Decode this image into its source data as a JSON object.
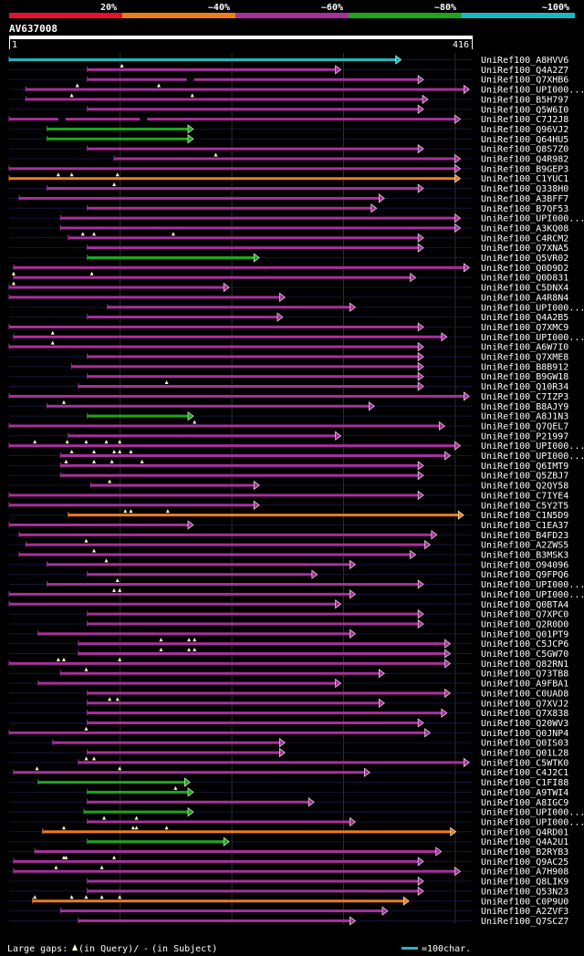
{
  "chart_data": {
    "type": "alignment-overview",
    "query_id": "AV637008",
    "query_length": 416,
    "axis": {
      "start_label": "1",
      "end_label": "416"
    },
    "identity_legend": [
      {
        "label": "20%",
        "color": "#e8102c"
      },
      {
        "label": "~40%",
        "color": "#ee7c1b"
      },
      {
        "label": "~60%",
        "color": "#a8309c"
      },
      {
        "label": "~80%",
        "color": "#1ca61c"
      },
      {
        "label": "~100%",
        "color": "#1cb8c0"
      }
    ],
    "hits": [
      {
        "name": "UniRef100_A8HVV6",
        "start": 1,
        "end": 352,
        "color": "#1cb8c0",
        "gaps_query": [],
        "gaps_subject": []
      },
      {
        "name": "UniRef100_Q4A2Z7",
        "start": 71,
        "end": 298,
        "color": "#a8309c",
        "gaps_query": [
          102
        ],
        "gaps_subject": []
      },
      {
        "name": "UniRef100_Q7XHB6",
        "start": 71,
        "end": 372,
        "color": "#a8309c",
        "gaps_query": [],
        "gaps_subject": [
          160
        ]
      },
      {
        "name": "UniRef100_UPI000...",
        "start": 16,
        "end": 413,
        "color": "#a8309c",
        "gaps_query": [
          62,
          135
        ],
        "gaps_subject": []
      },
      {
        "name": "UniRef100_B5H797",
        "start": 16,
        "end": 376,
        "color": "#a8309c",
        "gaps_query": [
          57,
          165
        ],
        "gaps_subject": []
      },
      {
        "name": "UniRef100_Q5W6I0",
        "start": 71,
        "end": 372,
        "color": "#a8309c",
        "gaps_query": [],
        "gaps_subject": []
      },
      {
        "name": "UniRef100_C7J2J8",
        "start": 1,
        "end": 405,
        "color": "#a8309c",
        "gaps_query": [],
        "gaps_subject": [
          45,
          118
        ]
      },
      {
        "name": "UniRef100_Q96VJ2",
        "start": 35,
        "end": 166,
        "color": "#1ca61c",
        "gaps_query": [],
        "gaps_subject": []
      },
      {
        "name": "UniRef100_Q64HU5",
        "start": 35,
        "end": 166,
        "color": "#1ca61c",
        "gaps_query": [],
        "gaps_subject": []
      },
      {
        "name": "UniRef100_Q8S7Z0",
        "start": 71,
        "end": 372,
        "color": "#a8309c",
        "gaps_query": [],
        "gaps_subject": []
      },
      {
        "name": "UniRef100_Q4R982",
        "start": 95,
        "end": 405,
        "color": "#a8309c",
        "gaps_query": [
          186
        ],
        "gaps_subject": []
      },
      {
        "name": "UniRef100_B9GEP3",
        "start": 1,
        "end": 405,
        "color": "#a8309c",
        "gaps_query": [],
        "gaps_subject": []
      },
      {
        "name": "UniRef100_C1YUC1",
        "start": 1,
        "end": 405,
        "color": "#ee7c1b",
        "gaps_query": [
          45,
          57,
          98
        ],
        "gaps_subject": []
      },
      {
        "name": "UniRef100_Q338H0",
        "start": 35,
        "end": 372,
        "color": "#a8309c",
        "gaps_query": [
          95
        ],
        "gaps_subject": []
      },
      {
        "name": "UniRef100_A3BFF7",
        "start": 10,
        "end": 337,
        "color": "#a8309c",
        "gaps_query": [],
        "gaps_subject": []
      },
      {
        "name": "UniRef100_B7QF53",
        "start": 71,
        "end": 330,
        "color": "#a8309c",
        "gaps_query": [],
        "gaps_subject": []
      },
      {
        "name": "UniRef100_UPI000...",
        "start": 47,
        "end": 405,
        "color": "#a8309c",
        "gaps_query": [],
        "gaps_subject": []
      },
      {
        "name": "UniRef100_A3KQ08",
        "start": 47,
        "end": 405,
        "color": "#a8309c",
        "gaps_query": [],
        "gaps_subject": []
      },
      {
        "name": "UniRef100_C4RCM2",
        "start": 54,
        "end": 372,
        "color": "#a8309c",
        "gaps_query": [
          67,
          77,
          148
        ],
        "gaps_subject": []
      },
      {
        "name": "UniRef100_Q7XNA5",
        "start": 71,
        "end": 372,
        "color": "#a8309c",
        "gaps_query": [],
        "gaps_subject": []
      },
      {
        "name": "UniRef100_Q5VR02",
        "start": 71,
        "end": 225,
        "color": "#1ca61c",
        "gaps_query": [],
        "gaps_subject": []
      },
      {
        "name": "UniRef100_Q0D9D2",
        "start": 5,
        "end": 413,
        "color": "#a8309c",
        "gaps_query": [],
        "gaps_subject": []
      },
      {
        "name": "UniRef100_Q0D831",
        "start": 5,
        "end": 365,
        "color": "#a8309c",
        "gaps_query": [
          5,
          75
        ],
        "gaps_subject": []
      },
      {
        "name": "UniRef100_C5DNX4",
        "start": 1,
        "end": 198,
        "color": "#a8309c",
        "gaps_query": [
          5
        ],
        "gaps_subject": []
      },
      {
        "name": "UniRef100_A4R8N4",
        "start": 1,
        "end": 248,
        "color": "#a8309c",
        "gaps_query": [],
        "gaps_subject": []
      },
      {
        "name": "UniRef100_UPI000...",
        "start": 89,
        "end": 311,
        "color": "#a8309c",
        "gaps_query": [],
        "gaps_subject": []
      },
      {
        "name": "UniRef100_Q4A2B5",
        "start": 71,
        "end": 246,
        "color": "#a8309c",
        "gaps_query": [],
        "gaps_subject": []
      },
      {
        "name": "UniRef100_Q7XMC9",
        "start": 1,
        "end": 372,
        "color": "#a8309c",
        "gaps_query": [],
        "gaps_subject": []
      },
      {
        "name": "UniRef100_UPI000...",
        "start": 5,
        "end": 393,
        "color": "#a8309c",
        "gaps_query": [
          40
        ],
        "gaps_subject": []
      },
      {
        "name": "UniRef100_A6W7I0",
        "start": 1,
        "end": 372,
        "color": "#a8309c",
        "gaps_query": [
          40
        ],
        "gaps_subject": []
      },
      {
        "name": "UniRef100_Q7XME8",
        "start": 71,
        "end": 372,
        "color": "#a8309c",
        "gaps_query": [],
        "gaps_subject": []
      },
      {
        "name": "UniRef100_B8B912",
        "start": 57,
        "end": 372,
        "color": "#a8309c",
        "gaps_query": [],
        "gaps_subject": []
      },
      {
        "name": "UniRef100_B9GW18",
        "start": 71,
        "end": 372,
        "color": "#a8309c",
        "gaps_query": [],
        "gaps_subject": []
      },
      {
        "name": "UniRef100_Q10R34",
        "start": 63,
        "end": 372,
        "color": "#a8309c",
        "gaps_query": [
          142
        ],
        "gaps_subject": []
      },
      {
        "name": "UniRef100_C7IZP3",
        "start": 1,
        "end": 413,
        "color": "#a8309c",
        "gaps_query": [],
        "gaps_subject": []
      },
      {
        "name": "UniRef100_B8AJY9",
        "start": 35,
        "end": 328,
        "color": "#a8309c",
        "gaps_query": [
          50
        ],
        "gaps_subject": []
      },
      {
        "name": "UniRef100_A8J1N3",
        "start": 71,
        "end": 166,
        "color": "#1ca61c",
        "gaps_query": [],
        "gaps_subject": []
      },
      {
        "name": "UniRef100_Q7QEL7",
        "start": 1,
        "end": 391,
        "color": "#a8309c",
        "gaps_query": [
          167
        ],
        "gaps_subject": []
      },
      {
        "name": "UniRef100_P21997",
        "start": 54,
        "end": 298,
        "color": "#a8309c",
        "gaps_query": [],
        "gaps_subject": []
      },
      {
        "name": "UniRef100_UPI000...",
        "start": 1,
        "end": 405,
        "color": "#a8309c",
        "gaps_query": [
          24,
          53,
          70,
          88,
          100
        ],
        "gaps_subject": []
      },
      {
        "name": "UniRef100_UPI000...",
        "start": 47,
        "end": 396,
        "color": "#a8309c",
        "gaps_query": [
          57,
          77,
          95,
          100,
          110
        ],
        "gaps_subject": []
      },
      {
        "name": "UniRef100_Q6IMT9",
        "start": 47,
        "end": 372,
        "color": "#a8309c",
        "gaps_query": [
          52,
          77,
          93,
          120
        ],
        "gaps_subject": []
      },
      {
        "name": "UniRef100_Q5ZBJ7",
        "start": 47,
        "end": 372,
        "color": "#a8309c",
        "gaps_query": [],
        "gaps_subject": []
      },
      {
        "name": "UniRef100_Q2QY58",
        "start": 74,
        "end": 225,
        "color": "#a8309c",
        "gaps_query": [
          91
        ],
        "gaps_subject": []
      },
      {
        "name": "UniRef100_C7IYE4",
        "start": 1,
        "end": 372,
        "color": "#a8309c",
        "gaps_query": [],
        "gaps_subject": []
      },
      {
        "name": "UniRef100_C5Y2T5",
        "start": 1,
        "end": 225,
        "color": "#a8309c",
        "gaps_query": [],
        "gaps_subject": []
      },
      {
        "name": "UniRef100_C1N5D9",
        "start": 54,
        "end": 408,
        "color": "#ee7c1b",
        "gaps_query": [
          105,
          110,
          143
        ],
        "gaps_subject": []
      },
      {
        "name": "UniRef100_C1EA37",
        "start": 1,
        "end": 166,
        "color": "#a8309c",
        "gaps_query": [],
        "gaps_subject": []
      },
      {
        "name": "UniRef100_B4FD23",
        "start": 10,
        "end": 384,
        "color": "#a8309c",
        "gaps_query": [],
        "gaps_subject": []
      },
      {
        "name": "UniRef100_A2ZWS5",
        "start": 16,
        "end": 378,
        "color": "#a8309c",
        "gaps_query": [
          70
        ],
        "gaps_subject": []
      },
      {
        "name": "UniRef100_B3MSK3",
        "start": 10,
        "end": 365,
        "color": "#a8309c",
        "gaps_query": [
          77
        ],
        "gaps_subject": []
      },
      {
        "name": "UniRef100_O94096",
        "start": 35,
        "end": 311,
        "color": "#a8309c",
        "gaps_query": [
          88
        ],
        "gaps_subject": []
      },
      {
        "name": "UniRef100_Q9FPQ6",
        "start": 71,
        "end": 277,
        "color": "#a8309c",
        "gaps_query": [],
        "gaps_subject": []
      },
      {
        "name": "UniRef100_UPI000...",
        "start": 35,
        "end": 372,
        "color": "#a8309c",
        "gaps_query": [
          98
        ],
        "gaps_subject": []
      },
      {
        "name": "UniRef100_UPI000...",
        "start": 1,
        "end": 311,
        "color": "#a8309c",
        "gaps_query": [
          95,
          100
        ],
        "gaps_subject": []
      },
      {
        "name": "UniRef100_Q0BTA4",
        "start": 1,
        "end": 298,
        "color": "#a8309c",
        "gaps_query": [],
        "gaps_subject": []
      },
      {
        "name": "UniRef100_Q7XPC0",
        "start": 71,
        "end": 372,
        "color": "#a8309c",
        "gaps_query": [],
        "gaps_subject": []
      },
      {
        "name": "UniRef100_Q2R0D0",
        "start": 71,
        "end": 372,
        "color": "#a8309c",
        "gaps_query": [],
        "gaps_subject": []
      },
      {
        "name": "UniRef100_Q01PT9",
        "start": 27,
        "end": 311,
        "color": "#a8309c",
        "gaps_query": [],
        "gaps_subject": []
      },
      {
        "name": "UniRef100_C5JCP6",
        "start": 63,
        "end": 396,
        "color": "#a8309c",
        "gaps_query": [
          137,
          162,
          167
        ],
        "gaps_subject": []
      },
      {
        "name": "UniRef100_C5GW70",
        "start": 63,
        "end": 396,
        "color": "#a8309c",
        "gaps_query": [
          137,
          162,
          167
        ],
        "gaps_subject": []
      },
      {
        "name": "UniRef100_Q82RN1",
        "start": 1,
        "end": 396,
        "color": "#a8309c",
        "gaps_query": [
          45,
          50,
          100
        ],
        "gaps_subject": []
      },
      {
        "name": "UniRef100_Q73TB8",
        "start": 47,
        "end": 337,
        "color": "#a8309c",
        "gaps_query": [
          70
        ],
        "gaps_subject": []
      },
      {
        "name": "UniRef100_A9FBA1",
        "start": 27,
        "end": 298,
        "color": "#a8309c",
        "gaps_query": [],
        "gaps_subject": []
      },
      {
        "name": "UniRef100_C0UAD8",
        "start": 71,
        "end": 396,
        "color": "#a8309c",
        "gaps_query": [],
        "gaps_subject": []
      },
      {
        "name": "UniRef100_Q7XVJ2",
        "start": 71,
        "end": 337,
        "color": "#a8309c",
        "gaps_query": [
          91,
          98
        ],
        "gaps_subject": []
      },
      {
        "name": "UniRef100_Q7X838",
        "start": 71,
        "end": 393,
        "color": "#a8309c",
        "gaps_query": [],
        "gaps_subject": []
      },
      {
        "name": "UniRef100_Q20WV3",
        "start": 71,
        "end": 372,
        "color": "#a8309c",
        "gaps_query": [],
        "gaps_subject": []
      },
      {
        "name": "UniRef100_Q0JNP4",
        "start": 1,
        "end": 378,
        "color": "#a8309c",
        "gaps_query": [
          70
        ],
        "gaps_subject": []
      },
      {
        "name": "UniRef100_Q0IS03",
        "start": 40,
        "end": 248,
        "color": "#a8309c",
        "gaps_query": [],
        "gaps_subject": []
      },
      {
        "name": "UniRef100_Q01L28",
        "start": 71,
        "end": 248,
        "color": "#a8309c",
        "gaps_query": [],
        "gaps_subject": []
      },
      {
        "name": "UniRef100_C5WTK0",
        "start": 63,
        "end": 413,
        "color": "#a8309c",
        "gaps_query": [
          70,
          77
        ],
        "gaps_subject": []
      },
      {
        "name": "UniRef100_C4J2C1",
        "start": 5,
        "end": 324,
        "color": "#a8309c",
        "gaps_query": [
          26,
          100
        ],
        "gaps_subject": []
      },
      {
        "name": "UniRef100_C1FI88",
        "start": 27,
        "end": 163,
        "color": "#1ca61c",
        "gaps_query": [],
        "gaps_subject": []
      },
      {
        "name": "UniRef100_A9TWI4",
        "start": 71,
        "end": 166,
        "color": "#1ca61c",
        "gaps_query": [
          150
        ],
        "gaps_subject": []
      },
      {
        "name": "UniRef100_A8IGC9",
        "start": 71,
        "end": 274,
        "color": "#a8309c",
        "gaps_query": [],
        "gaps_subject": []
      },
      {
        "name": "UniRef100_UPI000...",
        "start": 68,
        "end": 166,
        "color": "#1ca61c",
        "gaps_query": [],
        "gaps_subject": []
      },
      {
        "name": "UniRef100_UPI000...",
        "start": 71,
        "end": 311,
        "color": "#a8309c",
        "gaps_query": [
          86,
          115
        ],
        "gaps_subject": []
      },
      {
        "name": "UniRef100_Q4RD01",
        "start": 31,
        "end": 401,
        "color": "#ee7c1b",
        "gaps_query": [
          50,
          112,
          115,
          142
        ],
        "gaps_subject": []
      },
      {
        "name": "UniRef100_Q4A2U1",
        "start": 71,
        "end": 198,
        "color": "#1ca61c",
        "gaps_query": [],
        "gaps_subject": []
      },
      {
        "name": "UniRef100_B2RYB3",
        "start": 24,
        "end": 388,
        "color": "#a8309c",
        "gaps_query": [],
        "gaps_subject": []
      },
      {
        "name": "UniRef100_Q9AC25",
        "start": 5,
        "end": 372,
        "color": "#a8309c",
        "gaps_query": [
          50,
          52,
          95
        ],
        "gaps_subject": []
      },
      {
        "name": "UniRef100_A7H908",
        "start": 5,
        "end": 405,
        "color": "#a8309c",
        "gaps_query": [
          43,
          84
        ],
        "gaps_subject": []
      },
      {
        "name": "UniRef100_Q8LIK9",
        "start": 71,
        "end": 372,
        "color": "#a8309c",
        "gaps_query": [],
        "gaps_subject": []
      },
      {
        "name": "UniRef100_Q53N23",
        "start": 71,
        "end": 372,
        "color": "#a8309c",
        "gaps_query": [],
        "gaps_subject": []
      },
      {
        "name": "UniRef100_C0P9U0",
        "start": 22,
        "end": 359,
        "color": "#ee7c1b",
        "gaps_query": [
          24,
          57,
          70,
          84,
          100
        ],
        "gaps_subject": []
      },
      {
        "name": "UniRef100_A2ZVF3",
        "start": 47,
        "end": 340,
        "color": "#a8309c",
        "gaps_query": [],
        "gaps_subject": []
      },
      {
        "name": "UniRef100_Q7SCZ7",
        "start": 63,
        "end": 311,
        "color": "#a8309c",
        "gaps_query": [],
        "gaps_subject": []
      }
    ],
    "footer": {
      "legend_prefix": "Large gaps:",
      "legend_query": "(in Query)/",
      "legend_subject": "(in Subject)",
      "scale_label": "=100char."
    },
    "scale_color": "#1cb8c0"
  }
}
